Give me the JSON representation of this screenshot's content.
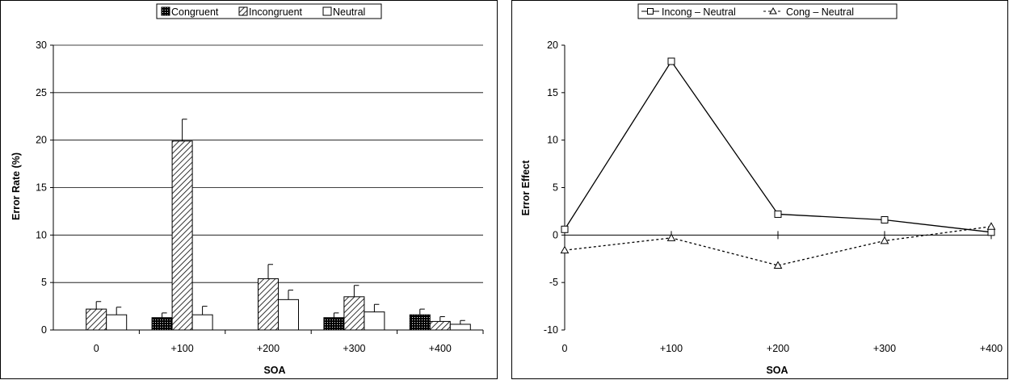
{
  "chart_data": [
    {
      "type": "bar",
      "title": "",
      "xlabel": "SOA",
      "ylabel": "Error Rate (%)",
      "ylim": [
        0,
        30
      ],
      "yticks": [
        0,
        5,
        10,
        15,
        20,
        25,
        30
      ],
      "grid": true,
      "legend_position": "top-center",
      "categories": [
        "0",
        "+100",
        "+200",
        "+300",
        "+400"
      ],
      "series": [
        {
          "name": "Congruent",
          "pattern": "dotted-black",
          "values": [
            0,
            1.3,
            0,
            1.3,
            1.6
          ],
          "error": [
            0,
            0.5,
            0,
            0.5,
            0.6
          ]
        },
        {
          "name": "Incongruent",
          "pattern": "diagonal-hatch",
          "values": [
            2.2,
            19.9,
            5.4,
            3.5,
            0.9
          ],
          "error": [
            0.8,
            2.3,
            1.5,
            1.2,
            0.5
          ]
        },
        {
          "name": "Neutral",
          "pattern": "white",
          "values": [
            1.6,
            1.6,
            3.2,
            1.9,
            0.6
          ],
          "error": [
            0.8,
            0.9,
            1.0,
            0.8,
            0.4
          ]
        }
      ]
    },
    {
      "type": "line",
      "title": "",
      "xlabel": "SOA",
      "ylabel": "Error Effect",
      "ylim": [
        -10,
        20
      ],
      "yticks": [
        -10,
        -5,
        0,
        5,
        10,
        15,
        20
      ],
      "grid": false,
      "legend_position": "top-center",
      "categories": [
        "0",
        "+100",
        "+200",
        "+300",
        "+400"
      ],
      "series": [
        {
          "name": "Incong – Neutral",
          "line": "solid",
          "marker": "square",
          "values": [
            0.6,
            18.3,
            2.2,
            1.6,
            0.3
          ]
        },
        {
          "name": "Cong – Neutral",
          "line": "dashed",
          "marker": "triangle",
          "values": [
            -1.6,
            -0.3,
            -3.2,
            -0.6,
            0.9
          ]
        }
      ]
    }
  ]
}
